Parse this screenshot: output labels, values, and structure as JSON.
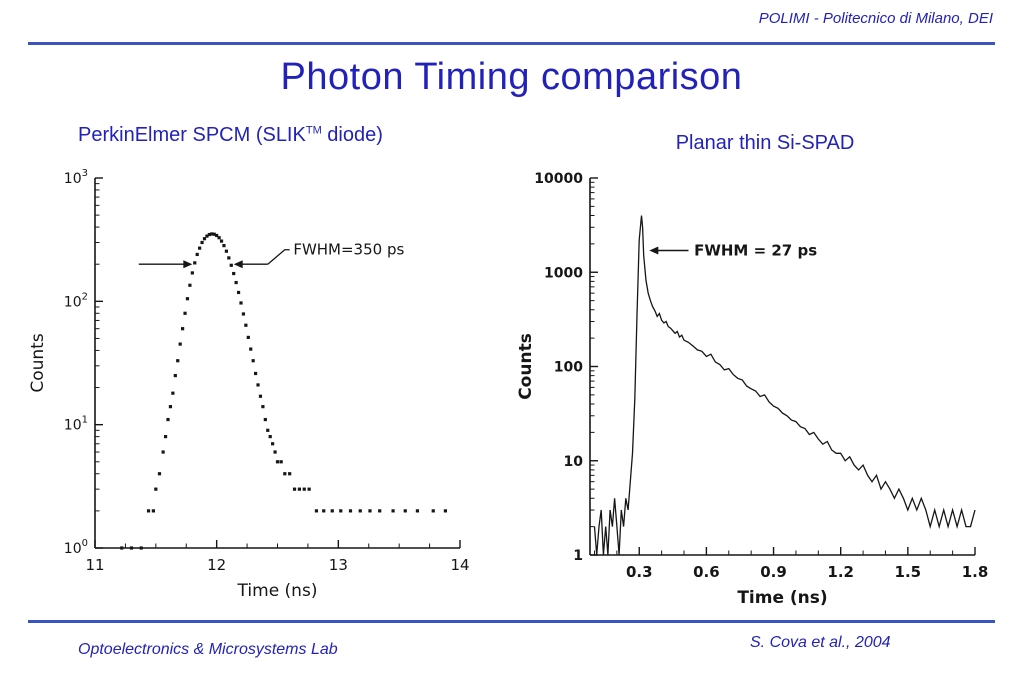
{
  "slide": {
    "header": "POLIMI - Politecnico di Milano, DEI",
    "title": "Photon Timing comparison",
    "subtitle_left": {
      "prefix": "PerkinElmer SPCM (SLIK",
      "sup": "TM",
      "suffix": " diode)"
    },
    "subtitle_right": "Planar thin Si-SPAD",
    "footer_left": "Optoelectronics & Microsystems Lab",
    "footer_right": "S. Cova et al., 2004",
    "accent_color": "#2222bb",
    "line_color": "#3a55c0",
    "ink_color": "#161616"
  },
  "chart_data": [
    {
      "id": "chart-left",
      "type": "scatter",
      "title": "PerkinElmer SPCM (SLIK TM diode) timing response",
      "xlabel": "Time (ns)",
      "ylabel": "Counts",
      "xlim": [
        11,
        14
      ],
      "ylim": [
        1,
        1000
      ],
      "ylog": true,
      "xticks": [
        11,
        12,
        13,
        14
      ],
      "xtick_labels": [
        "11",
        "12",
        "13",
        "14"
      ],
      "yticks": [
        1,
        10,
        100,
        1000
      ],
      "ytick_style": "power10",
      "x_minor_step": 0.25,
      "margin": {
        "l": 70,
        "t": 30,
        "r": 25,
        "b": 70
      },
      "ylx": 18,
      "bold": false,
      "grid": false,
      "legend": "none",
      "annotation": {
        "label": "FWHM=350 ps",
        "level": 200,
        "left_seg": [
          11.36,
          11.8
        ],
        "right_seg": [
          12.42,
          12.14
        ],
        "connector": [
          [
            12.42,
            200
          ],
          [
            12.56,
            262
          ],
          [
            12.6,
            262
          ]
        ],
        "label_at": [
          12.63,
          262
        ]
      },
      "points": [
        [
          11.22,
          1
        ],
        [
          11.3,
          1
        ],
        [
          11.38,
          1
        ],
        [
          11.44,
          2
        ],
        [
          11.48,
          2
        ],
        [
          11.5,
          3
        ],
        [
          11.53,
          4
        ],
        [
          11.56,
          6
        ],
        [
          11.58,
          8
        ],
        [
          11.6,
          11
        ],
        [
          11.62,
          14
        ],
        [
          11.64,
          18
        ],
        [
          11.66,
          25
        ],
        [
          11.68,
          33
        ],
        [
          11.7,
          45
        ],
        [
          11.72,
          60
        ],
        [
          11.74,
          80
        ],
        [
          11.76,
          105
        ],
        [
          11.78,
          135
        ],
        [
          11.8,
          170
        ],
        [
          11.82,
          205
        ],
        [
          11.84,
          240
        ],
        [
          11.86,
          270
        ],
        [
          11.88,
          300
        ],
        [
          11.9,
          322
        ],
        [
          11.92,
          338
        ],
        [
          11.94,
          348
        ],
        [
          11.96,
          352
        ],
        [
          11.98,
          350
        ],
        [
          12.0,
          342
        ],
        [
          12.02,
          328
        ],
        [
          12.04,
          308
        ],
        [
          12.06,
          283
        ],
        [
          12.08,
          255
        ],
        [
          12.1,
          225
        ],
        [
          12.12,
          196
        ],
        [
          12.14,
          168
        ],
        [
          12.16,
          142
        ],
        [
          12.18,
          118
        ],
        [
          12.2,
          97
        ],
        [
          12.22,
          79
        ],
        [
          12.24,
          64
        ],
        [
          12.26,
          51
        ],
        [
          12.28,
          41
        ],
        [
          12.3,
          33
        ],
        [
          12.32,
          26
        ],
        [
          12.34,
          21
        ],
        [
          12.36,
          17
        ],
        [
          12.38,
          14
        ],
        [
          12.4,
          11
        ],
        [
          12.42,
          9
        ],
        [
          12.44,
          8
        ],
        [
          12.46,
          7
        ],
        [
          12.48,
          6
        ],
        [
          12.5,
          5
        ],
        [
          12.53,
          5
        ],
        [
          12.56,
          4
        ],
        [
          12.6,
          4
        ],
        [
          12.64,
          3
        ],
        [
          12.68,
          3
        ],
        [
          12.72,
          3
        ],
        [
          12.76,
          3
        ],
        [
          12.82,
          2
        ],
        [
          12.88,
          2
        ],
        [
          12.95,
          2
        ],
        [
          13.02,
          2
        ],
        [
          13.1,
          2
        ],
        [
          13.18,
          2
        ],
        [
          13.26,
          2
        ],
        [
          13.34,
          2
        ],
        [
          13.45,
          2
        ],
        [
          13.55,
          2
        ],
        [
          13.65,
          2
        ],
        [
          13.78,
          2
        ],
        [
          13.88,
          2
        ]
      ]
    },
    {
      "id": "chart-right",
      "type": "line",
      "title": "Planar thin Si-SPAD timing response",
      "xlabel": "Time (ns)",
      "ylabel": "Counts",
      "xlim": [
        0.08,
        1.8
      ],
      "ylim": [
        1,
        10000
      ],
      "ylog": true,
      "xticks": [
        0.3,
        0.6,
        0.9,
        1.2,
        1.5,
        1.8
      ],
      "xtick_labels": [
        "0.3",
        "0.6",
        "0.9",
        "1.2",
        "1.5",
        "1.8"
      ],
      "yticks": [
        1,
        10,
        100,
        1000,
        10000
      ],
      "ytick_labels": [
        "1",
        "10",
        "100",
        "1000",
        "10000"
      ],
      "x_minor_step": 0.1,
      "margin": {
        "l": 85,
        "t": 28,
        "r": 20,
        "b": 75
      },
      "ylx": 26,
      "bold": true,
      "grid": false,
      "legend": "none",
      "annotation": {
        "label": "FWHM = 27 ps",
        "arrow_from": [
          0.52,
          1700
        ],
        "arrow_to": [
          0.345,
          1700
        ],
        "label_at": [
          0.545,
          1700
        ]
      },
      "points": [
        [
          0.1,
          2
        ],
        [
          0.11,
          1
        ],
        [
          0.12,
          2
        ],
        [
          0.13,
          3
        ],
        [
          0.14,
          1
        ],
        [
          0.15,
          2
        ],
        [
          0.16,
          1
        ],
        [
          0.17,
          3
        ],
        [
          0.18,
          2
        ],
        [
          0.19,
          4
        ],
        [
          0.2,
          2
        ],
        [
          0.21,
          1
        ],
        [
          0.22,
          3
        ],
        [
          0.23,
          2
        ],
        [
          0.24,
          4
        ],
        [
          0.25,
          3
        ],
        [
          0.26,
          6
        ],
        [
          0.27,
          12
        ],
        [
          0.28,
          45
        ],
        [
          0.29,
          350
        ],
        [
          0.3,
          2200
        ],
        [
          0.31,
          4000
        ],
        [
          0.315,
          3000
        ],
        [
          0.32,
          1500
        ],
        [
          0.33,
          820
        ],
        [
          0.34,
          600
        ],
        [
          0.35,
          500
        ],
        [
          0.36,
          430
        ],
        [
          0.37,
          390
        ],
        [
          0.38,
          340
        ],
        [
          0.39,
          365
        ],
        [
          0.4,
          310
        ],
        [
          0.41,
          290
        ],
        [
          0.42,
          300
        ],
        [
          0.43,
          265
        ],
        [
          0.44,
          255
        ],
        [
          0.45,
          240
        ],
        [
          0.46,
          225
        ],
        [
          0.47,
          235
        ],
        [
          0.48,
          205
        ],
        [
          0.49,
          215
        ],
        [
          0.5,
          190
        ],
        [
          0.52,
          180
        ],
        [
          0.54,
          165
        ],
        [
          0.56,
          150
        ],
        [
          0.58,
          145
        ],
        [
          0.6,
          128
        ],
        [
          0.62,
          135
        ],
        [
          0.64,
          112
        ],
        [
          0.66,
          105
        ],
        [
          0.68,
          92
        ],
        [
          0.7,
          95
        ],
        [
          0.72,
          82
        ],
        [
          0.74,
          75
        ],
        [
          0.76,
          72
        ],
        [
          0.78,
          62
        ],
        [
          0.8,
          58
        ],
        [
          0.82,
          55
        ],
        [
          0.84,
          48
        ],
        [
          0.86,
          50
        ],
        [
          0.88,
          42
        ],
        [
          0.9,
          38
        ],
        [
          0.92,
          36
        ],
        [
          0.94,
          32
        ],
        [
          0.96,
          30
        ],
        [
          0.98,
          27
        ],
        [
          1.0,
          26
        ],
        [
          1.02,
          23
        ],
        [
          1.04,
          22
        ],
        [
          1.06,
          19
        ],
        [
          1.08,
          20
        ],
        [
          1.1,
          17
        ],
        [
          1.12,
          15
        ],
        [
          1.14,
          16
        ],
        [
          1.16,
          13
        ],
        [
          1.18,
          12
        ],
        [
          1.2,
          12
        ],
        [
          1.22,
          10
        ],
        [
          1.24,
          11
        ],
        [
          1.26,
          9
        ],
        [
          1.28,
          8
        ],
        [
          1.3,
          9
        ],
        [
          1.32,
          7
        ],
        [
          1.34,
          6
        ],
        [
          1.36,
          7
        ],
        [
          1.38,
          5
        ],
        [
          1.4,
          6
        ],
        [
          1.42,
          5
        ],
        [
          1.44,
          4
        ],
        [
          1.46,
          5
        ],
        [
          1.48,
          4
        ],
        [
          1.5,
          3
        ],
        [
          1.52,
          4
        ],
        [
          1.54,
          3
        ],
        [
          1.56,
          4
        ],
        [
          1.58,
          3
        ],
        [
          1.6,
          2
        ],
        [
          1.62,
          3
        ],
        [
          1.64,
          2
        ],
        [
          1.66,
          3
        ],
        [
          1.68,
          2
        ],
        [
          1.7,
          3
        ],
        [
          1.72,
          2
        ],
        [
          1.74,
          3
        ],
        [
          1.76,
          2
        ],
        [
          1.78,
          2
        ],
        [
          1.8,
          3
        ]
      ]
    }
  ]
}
